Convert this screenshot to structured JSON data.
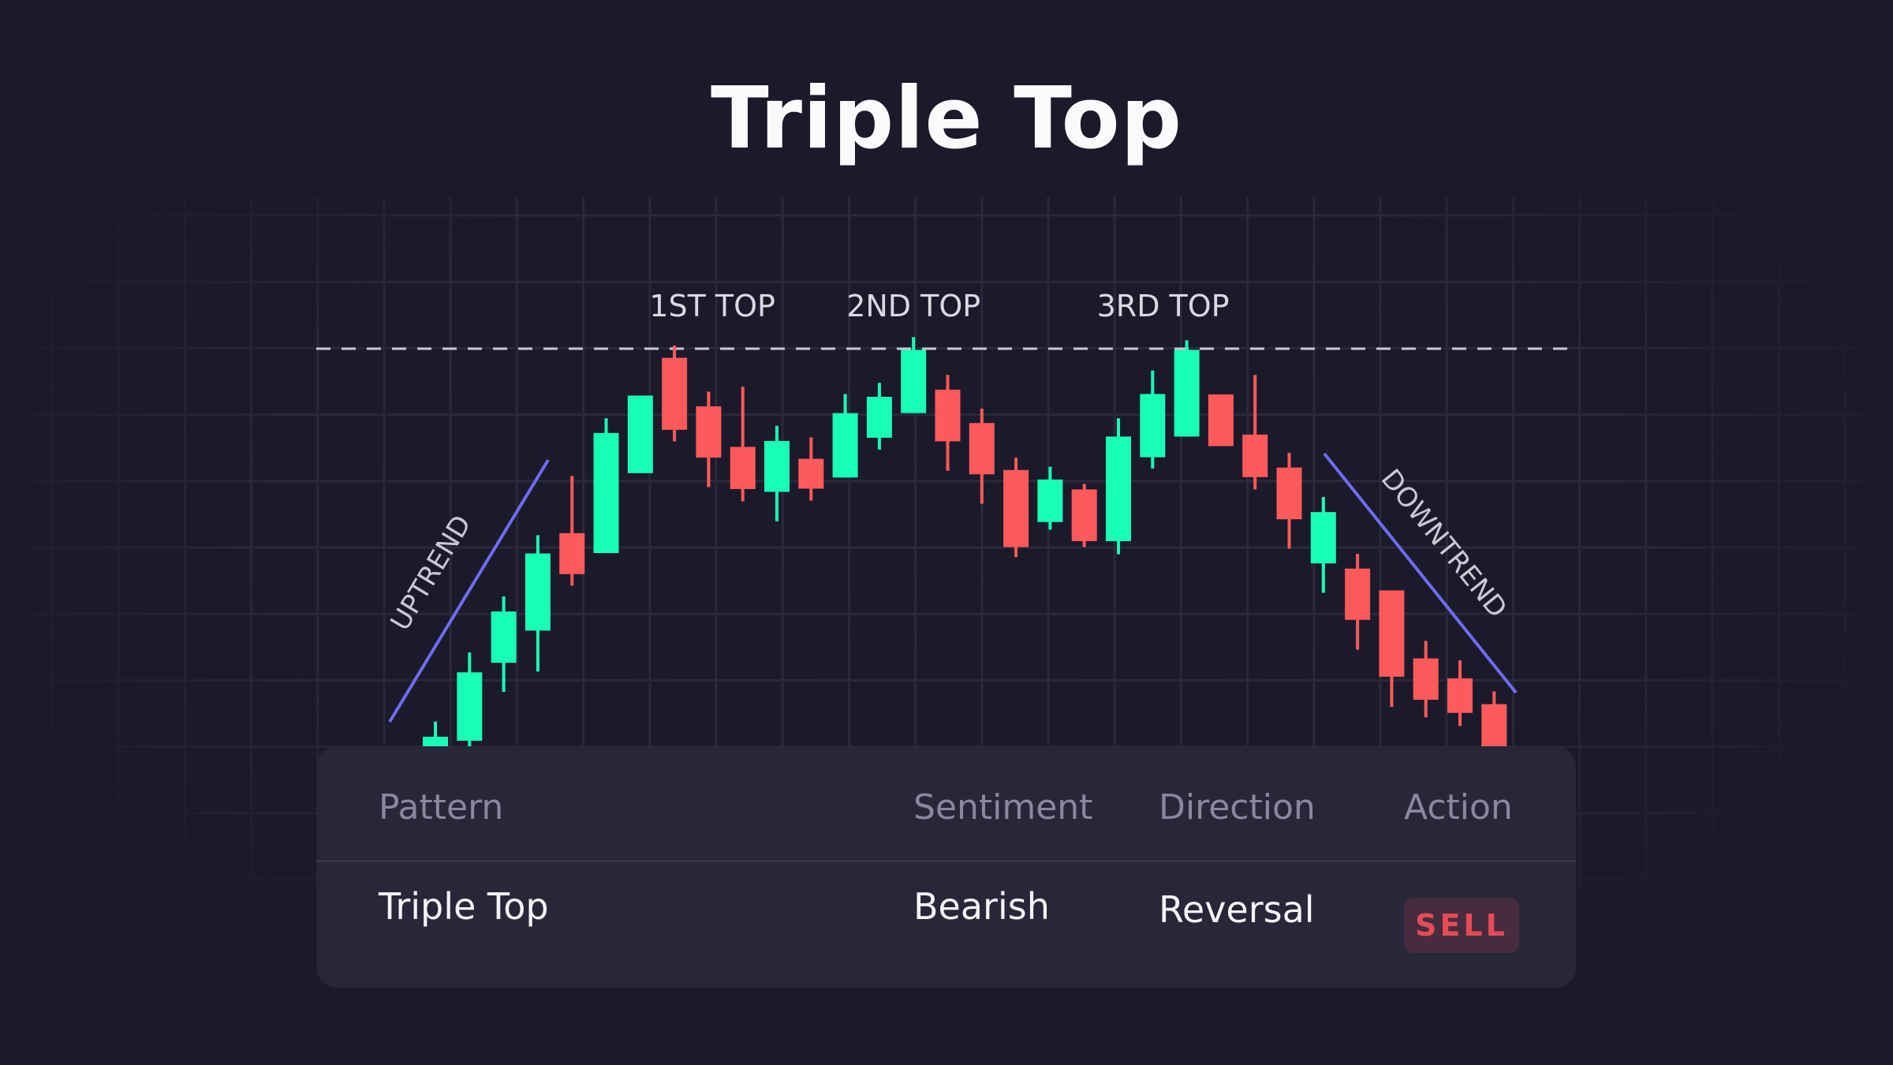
{
  "title": "Triple Top",
  "colors": {
    "background": "#1b1a2b",
    "bullish": "#1affb6",
    "bearish": "#ff5a5b",
    "trendline": "#6f6cf0",
    "resistance": "#c8c8d2",
    "grid": "#2b2a3d"
  },
  "chart_data": {
    "type": "candlestick",
    "title": "Triple Top",
    "grid": true,
    "resistance_level": 100,
    "annotations": [
      {
        "text": "1ST TOP",
        "candle": 8
      },
      {
        "text": "2ND TOP",
        "candle": 15
      },
      {
        "text": "3RD TOP",
        "candle": 23
      },
      {
        "text": "UPTREND",
        "type": "trendline",
        "from_candle": 1,
        "to_candle": 6
      },
      {
        "text": "DOWNTREND",
        "type": "trendline",
        "from_candle": 26,
        "to_candle": 32
      }
    ],
    "candles": [
      {
        "o": 0,
        "h": 6.2,
        "l": -1,
        "c": 2.4
      },
      {
        "o": 1.4,
        "h": 23.6,
        "l": 0,
        "c": 18.6
      },
      {
        "o": 21.0,
        "h": 37.7,
        "l": 13.7,
        "c": 33.9
      },
      {
        "o": 29.1,
        "h": 53.1,
        "l": 18.8,
        "c": 48.5
      },
      {
        "o": 53.6,
        "h": 68.0,
        "l": 40.4,
        "c": 43.3
      },
      {
        "o": 48.6,
        "h": 82.5,
        "l": 48.6,
        "c": 78.8
      },
      {
        "o": 68.7,
        "h": 88.2,
        "l": 68.7,
        "c": 88.2
      },
      {
        "o": 97.7,
        "h": 100.8,
        "l": 76.7,
        "c": 79.6
      },
      {
        "o": 85.5,
        "h": 89.2,
        "l": 65.2,
        "c": 72.6
      },
      {
        "o": 75.3,
        "h": 90.4,
        "l": 61.6,
        "c": 64.7
      },
      {
        "o": 64.0,
        "h": 80.6,
        "l": 56.6,
        "c": 76.8
      },
      {
        "o": 72.3,
        "h": 77.7,
        "l": 61.8,
        "c": 64.8
      },
      {
        "o": 67.6,
        "h": 88.6,
        "l": 67.6,
        "c": 83.8
      },
      {
        "o": 77.6,
        "h": 91.4,
        "l": 74.6,
        "c": 87.9
      },
      {
        "o": 83.8,
        "h": 102.9,
        "l": 83.8,
        "c": 99.7
      },
      {
        "o": 89.7,
        "h": 93.4,
        "l": 69.3,
        "c": 76.7
      },
      {
        "o": 81.3,
        "h": 84.9,
        "l": 61.0,
        "c": 68.4
      },
      {
        "o": 69.5,
        "h": 72.6,
        "l": 47.6,
        "c": 50.1
      },
      {
        "o": 56.4,
        "h": 70.3,
        "l": 54.5,
        "c": 67.1
      },
      {
        "o": 64.6,
        "h": 66.0,
        "l": 50.1,
        "c": 51.6
      },
      {
        "o": 51.6,
        "h": 82.5,
        "l": 48.3,
        "c": 77.9
      },
      {
        "o": 72.7,
        "h": 94.5,
        "l": 69.9,
        "c": 88.6
      },
      {
        "o": 77.9,
        "h": 102.1,
        "l": 77.9,
        "c": 99.7
      },
      {
        "o": 88.5,
        "h": 88.5,
        "l": 75.5,
        "c": 75.5
      },
      {
        "o": 78.4,
        "h": 93.4,
        "l": 64.6,
        "c": 67.7
      },
      {
        "o": 70.1,
        "h": 73.8,
        "l": 49.7,
        "c": 57.1
      },
      {
        "o": 46.0,
        "h": 62.7,
        "l": 38.6,
        "c": 58.9
      },
      {
        "o": 44.7,
        "h": 48.4,
        "l": 24.3,
        "c": 31.8
      },
      {
        "o": 39.2,
        "h": 39.2,
        "l": 9.9,
        "c": 17.5
      },
      {
        "o": 22.1,
        "h": 26.5,
        "l": 7.3,
        "c": 11.7
      },
      {
        "o": 17.1,
        "h": 21.6,
        "l": 5.1,
        "c": 8.4
      },
      {
        "o": 10.6,
        "h": 13.8,
        "l": -2,
        "c": -2
      }
    ]
  },
  "table": {
    "headers": {
      "pattern": "Pattern",
      "sentiment": "Sentiment",
      "direction": "Direction",
      "action": "Action"
    },
    "row": {
      "pattern": "Triple Top",
      "sentiment": "Bearish",
      "direction": "Reversal",
      "action": "SELL"
    }
  }
}
